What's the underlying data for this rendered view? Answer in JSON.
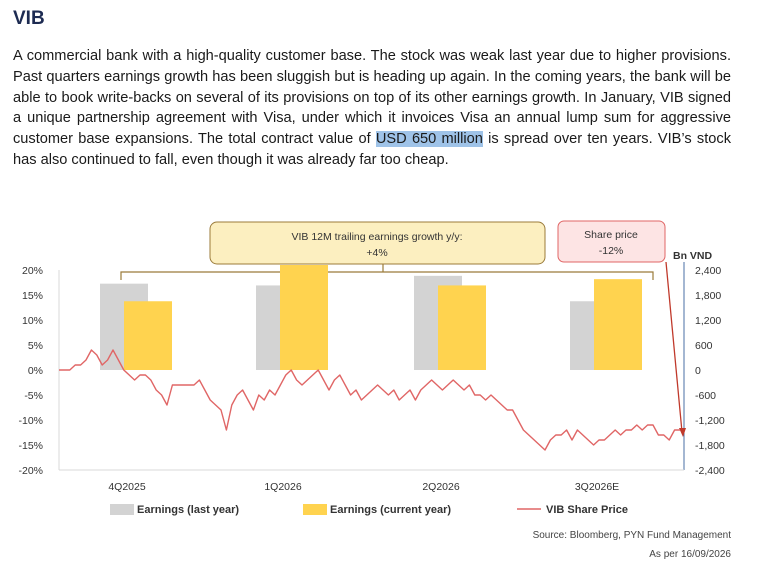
{
  "heading": "VIB",
  "paragraph": {
    "before": "A commercial bank with a high-quality customer base. The stock was weak last year due to higher provisions. Past quarters earnings growth has been sluggish but is heading up again. In the coming years, the bank will be able to book write-backs on several of its provisions on top of its other earnings growth. In January, VIB signed a unique partnership agreement with Visa, under which it invoices Visa an annual lump sum for aggressive customer base expansions. The total contract value of ",
    "highlight": "USD 650 million",
    "after": " is spread over ten years. VIB’s stock has also continued to fall, even though it was already far too cheap."
  },
  "chart_data": {
    "type": "bar",
    "categories": [
      "4Q2025",
      "1Q2026",
      "2Q2026",
      "3Q2026E"
    ],
    "series": [
      {
        "name": "Earnings (last year)",
        "color": "#d3d3d3",
        "values": [
          2072,
          2030,
          2260,
          1650
        ]
      },
      {
        "name": "Earnings (current year)",
        "color": "#ffd34f",
        "values": [
          1650,
          2520,
          2030,
          2180
        ]
      }
    ],
    "left_axis": {
      "ticks": [
        "20%",
        "15%",
        "10%",
        "5%",
        "0%",
        "-5%",
        "-10%",
        "-15%",
        "-20%"
      ],
      "ylim": [
        -20,
        20
      ]
    },
    "right_axis": {
      "label": "Bn VND",
      "ticks": [
        "2,400",
        "1,800",
        "1,200",
        "600",
        "0",
        "-600",
        "-1,200",
        "-1,800",
        "-2,400"
      ],
      "ylim": [
        -2400,
        2400
      ]
    },
    "line": {
      "name": "VIB Share Price",
      "color": "#e06666",
      "unit": "%",
      "values": [
        0,
        0,
        0,
        1,
        1,
        2,
        4,
        3,
        1,
        2,
        4,
        2,
        0,
        -1,
        -2,
        -1,
        -1,
        -2,
        -4,
        -5,
        -7,
        -3,
        -3,
        -3,
        -3,
        -3,
        -2,
        -4,
        -6,
        -7,
        -8,
        -12,
        -7,
        -5,
        -4,
        -6,
        -8,
        -5,
        -6,
        -4,
        -5,
        -3,
        -1,
        0,
        -2,
        -3,
        -2,
        -1,
        0,
        -2,
        -4,
        -2,
        -1,
        -3,
        -5,
        -4,
        -6,
        -5,
        -4,
        -3,
        -4,
        -5,
        -4,
        -6,
        -5,
        -4,
        -6,
        -4,
        -3,
        -2,
        -3,
        -4,
        -3,
        -2,
        -3,
        -4,
        -3,
        -5,
        -5,
        -6,
        -5,
        -6,
        -7,
        -8,
        -8,
        -10,
        -12,
        -13,
        -14,
        -15,
        -16,
        -14,
        -13,
        -13,
        -12,
        -14,
        -12,
        -13,
        -14,
        -15,
        -14,
        -14,
        -13,
        -12,
        -13,
        -12,
        -12,
        -11,
        -12,
        -11,
        -11,
        -13,
        -13,
        -14,
        -12,
        -12
      ]
    },
    "callouts": [
      {
        "text": "VIB 12M trailing earnings growth y/y:",
        "sub": "+4%"
      },
      {
        "text": "Share price",
        "sub": "-12%"
      }
    ],
    "legend": [
      "Earnings (last year)",
      "Earnings (current year)",
      "VIB Share Price"
    ],
    "source": "Source: Bloomberg, PYN Fund Management",
    "as_of": "As per 16/09/2026"
  }
}
